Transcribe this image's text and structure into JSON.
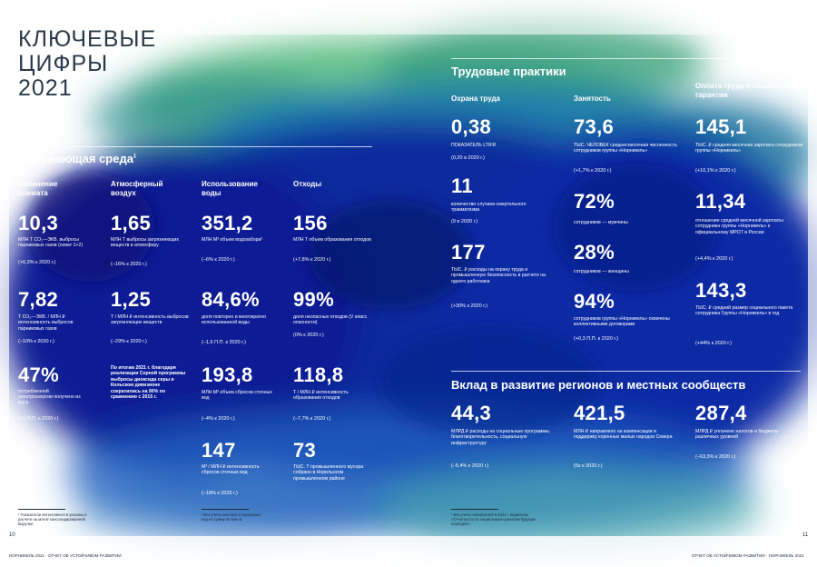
{
  "title": {
    "line1": "КЛЮЧЕВЫЕ",
    "line2": "ЦИФРЫ",
    "line3": "2021"
  },
  "env": {
    "heading": "Окружающая среда",
    "heading_sup": "1",
    "col1": {
      "header": "Изменение климата",
      "m1": {
        "value": "10,3",
        "desc": "МЛН Т СО₂—ЭКВ. выбросы парниковых газов (охват 1+2)",
        "delta": "(+6,3% к 2020 г.)"
      },
      "m2": {
        "value": "7,82",
        "desc": "Т СО₂—ЭКВ. / МЛН ₽ интенсивность выбросов парниковых газов",
        "delta": "(–10% к 2020 г.)"
      },
      "m3": {
        "value": "47%",
        "desc": "потребленной электроэнергии получено из ВИЭ",
        "delta": "(+1 П.П. к 2020 г.)"
      }
    },
    "col2": {
      "header": "Атмосферный воздух",
      "m1": {
        "value": "1,65",
        "desc": "МЛН Т выбросы загрязняющих веществ в атмосферу",
        "delta": "(–16% к 2020 г.)"
      },
      "m2": {
        "value": "1,25",
        "desc": "Т / МЛН ₽ интенсивность выбросов загрязняющих веществ",
        "delta": "(–29% к 2020 г.)"
      },
      "note": "По итогам 2021 г. благодаря реализации Серной программы выбросы диоксида серы в Кольском дивизионе сократились на 90% по сравнению с 2015 г."
    },
    "col3": {
      "header": "Использование воды",
      "m1": {
        "value": "351,2",
        "desc": "МЛН М³ объем водозабора²",
        "delta": "(–6% к 2020 г.)"
      },
      "m2": {
        "value": "84,6%",
        "desc": "доля повторно и многократно использованной воды",
        "delta": "(–1,6 П.П. к 2020 г.)"
      },
      "m3": {
        "value": "193,8",
        "desc": "МЛН М³ объем сбросов сточных вод",
        "delta": "(–4% к 2020 г.)"
      },
      "m4": {
        "value": "147",
        "desc": "М³ / МЛН ₽ интенсивность сбросов сточных вод",
        "delta": "(–18% к 2020 г.)"
      }
    },
    "col4": {
      "header": "Отходы",
      "m1": {
        "value": "156",
        "desc": "МЛН Т объем образования отходов",
        "delta": "(+7,8% к 2020 г.)"
      },
      "m2": {
        "value": "99%",
        "desc": "доля неопасных отходов (V класс опасности)",
        "delta": "(0% к 2020 г.)"
      },
      "m3": {
        "value": "118,8",
        "desc": "Т / МЛН ₽ интенсивность образования отходов",
        "delta": "(–7,7% к 2020 г.)"
      },
      "m4": {
        "value": "73",
        "desc": "ТЫС. Т промышленного мусора собрано в Норильском промышленном районе"
      }
    }
  },
  "labor": {
    "heading": "Трудовые практики",
    "col1": {
      "header": "Охрана труда",
      "m1": {
        "value": "0,38",
        "desc": "ПОКАЗАТЕЛЬ LTIFR",
        "delta": "(0,20 в 2020 г.)"
      },
      "m2": {
        "value": "11",
        "desc": "количество случаев смертельного травматизма",
        "delta": "(9 в 2020 г.)"
      },
      "m3": {
        "value": "177",
        "desc": "ТЫС. ₽ расходы на охрану труда и промышленную безопасность в расчете на одного работника",
        "delta": "(+30% к 2020 г.)"
      }
    },
    "col2": {
      "header": "Занятость",
      "m1": {
        "value": "73,6",
        "desc": "ТЫС. ЧЕЛОВЕК среднесписочная численность сотрудников группы «Норникель»",
        "delta": "(+1,7% к 2020 г.)"
      },
      "m2": {
        "value": "72%",
        "desc": "сотрудников — мужчины"
      },
      "m3": {
        "value": "28%",
        "desc": "сотрудников — женщины"
      },
      "m4": {
        "value": "94%",
        "desc": "сотрудников группы «Норникель» охвачены коллективными договорами",
        "delta": "(+0,3 П.П. к 2020 г.)"
      }
    },
    "col3": {
      "header": "Оплата труда и социальные гарантии",
      "m1": {
        "value": "145,1",
        "desc": "ТЫС. ₽ средняя месячная зарплата сотрудников группы «Норникель»",
        "delta": "(+10,1% к 2020 г.)"
      },
      "m2": {
        "value": "11,34",
        "desc": "отношение средней месячной зарплаты сотрудника группы «Норникель» к официальному МРОТ в России",
        "delta": "(+4,4% к 2020 г.)"
      },
      "m3": {
        "value": "143,3",
        "desc": "ТЫС. ₽ средний размер социального пакета сотрудника Группы «Норникель» в год",
        "delta": "(+44% к 2020 г.)"
      }
    }
  },
  "regions": {
    "heading": "Вклад в развитие регионов и местных сообществ",
    "m1": {
      "value": "44,3",
      "desc": "МЛРД ₽ расходы на социальные программы, благотворительность, социальную инфраструктуру",
      "delta": "(–5,4% к 2020 г.)"
    },
    "m2": {
      "value": "421,5",
      "desc": "МЛН ₽ направлено на компенсации и поддержку коренных малых народов Севера",
      "delta": "(5х к 2020 г.)"
    },
    "m3": {
      "value": "287,4",
      "desc": "МЛРД ₽ уплачено налогов в бюджеты различных уровней",
      "delta": "(–63,3% к 2020 г.)"
    }
  },
  "footnotes": {
    "f1": "¹ Показатели интенсивности указаны в расчете на млн ₽ консолидированной выручки.",
    "f2": "² Без учета шахтных и карьерных вод на сумму 40 млн ₽.",
    "f3": "¹ Без учета показателей в 2021 г. выделены «Отчетности по социальным проектам будущих периодов»."
  },
  "page": {
    "left_num": "10",
    "right_num": "11",
    "left_caption": "НОРНИКЕЛЬ 2021 · ОТЧЕТ ОБ УСТОЙЧИВОМ РАЗВИТИИ",
    "right_caption": "ОТЧЕТ ОБ УСТОЙЧИВОМ РАЗВИТИИ · НОРНИКЕЛЬ 2021"
  },
  "colors": {
    "deep_blue": "#0a1f8f",
    "teal": "#1f7f8c",
    "green": "#3fa86a",
    "title": "#2b3a4a"
  }
}
